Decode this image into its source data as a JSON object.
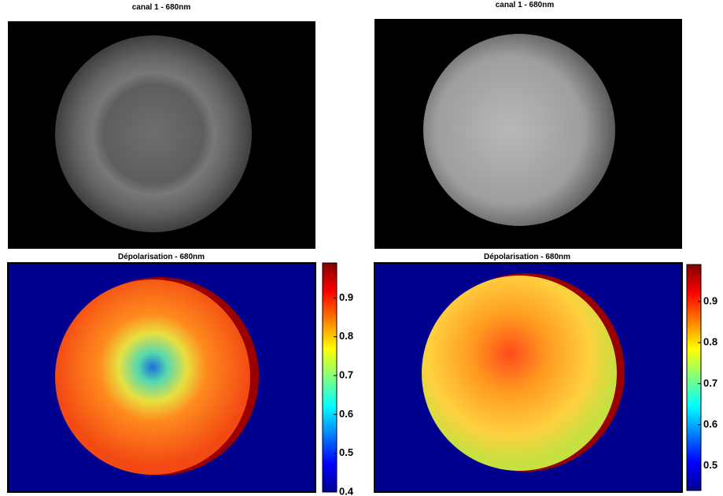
{
  "panels": [
    {
      "title": "canal 1 - 680nm"
    },
    {
      "title": "canal 1 - 680nm"
    },
    {
      "title": "Dépolarisation - 680nm",
      "colorbar": {
        "clim": [
          0.4,
          0.99
        ],
        "ticks": [
          0.4,
          0.5,
          0.6,
          0.7,
          0.8,
          0.9
        ]
      }
    },
    {
      "title": "Dépolarisation - 680nm",
      "colorbar": {
        "clim": [
          0.44,
          0.99
        ],
        "ticks": [
          0.5,
          0.6,
          0.7,
          0.8,
          0.9
        ]
      }
    }
  ]
}
